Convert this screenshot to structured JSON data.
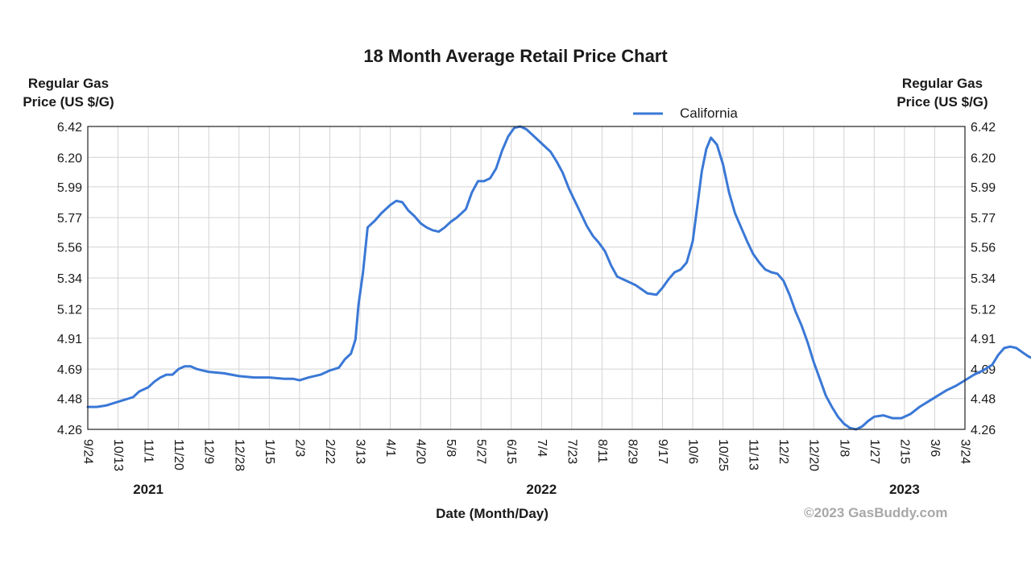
{
  "chart_data": {
    "type": "line",
    "title": "18 Month Average Retail Price Chart",
    "ylabel_left": "Regular Gas\nPrice (US $/G)",
    "ylabel_right": "Regular Gas\nPrice (US $/G)",
    "xlabel": "Date (Month/Day)",
    "legend": {
      "position": "top-center",
      "entries": [
        "California"
      ]
    },
    "grid": true,
    "ylim": [
      4.26,
      6.42
    ],
    "y_ticks": [
      "4.26",
      "4.48",
      "4.69",
      "4.91",
      "5.12",
      "5.34",
      "5.56",
      "5.77",
      "5.99",
      "6.20",
      "6.42"
    ],
    "x_ticks": [
      "9/24",
      "10/13",
      "11/1",
      "11/20",
      "12/9",
      "12/28",
      "1/15",
      "2/3",
      "2/22",
      "3/13",
      "4/1",
      "4/20",
      "5/8",
      "5/27",
      "6/15",
      "7/4",
      "7/23",
      "8/11",
      "8/29",
      "9/17",
      "10/6",
      "10/25",
      "11/13",
      "12/2",
      "12/20",
      "1/8",
      "1/27",
      "2/15",
      "3/6",
      "3/24"
    ],
    "year_labels": [
      {
        "label": "2021",
        "tick_index": 2
      },
      {
        "label": "2022",
        "tick_index": 15
      },
      {
        "label": "2023",
        "tick_index": 27
      }
    ],
    "series": [
      {
        "name": "California",
        "color": "#3a78d6",
        "points": [
          [
            0,
            4.42
          ],
          [
            0.3,
            4.42
          ],
          [
            0.6,
            4.43
          ],
          [
            0.9,
            4.45
          ],
          [
            1.2,
            4.47
          ],
          [
            1.5,
            4.49
          ],
          [
            1.7,
            4.53
          ],
          [
            2.0,
            4.56
          ],
          [
            2.2,
            4.6
          ],
          [
            2.4,
            4.63
          ],
          [
            2.6,
            4.65
          ],
          [
            2.8,
            4.65
          ],
          [
            3.0,
            4.69
          ],
          [
            3.2,
            4.71
          ],
          [
            3.4,
            4.71
          ],
          [
            3.6,
            4.69
          ],
          [
            3.8,
            4.68
          ],
          [
            4.0,
            4.67
          ],
          [
            4.5,
            4.66
          ],
          [
            5.0,
            4.64
          ],
          [
            5.5,
            4.63
          ],
          [
            6.0,
            4.63
          ],
          [
            6.5,
            4.62
          ],
          [
            6.8,
            4.62
          ],
          [
            7.0,
            4.61
          ],
          [
            7.3,
            4.63
          ],
          [
            7.7,
            4.65
          ],
          [
            8.0,
            4.68
          ],
          [
            8.3,
            4.7
          ],
          [
            8.5,
            4.76
          ],
          [
            8.7,
            4.8
          ],
          [
            8.85,
            4.9
          ],
          [
            8.95,
            5.15
          ],
          [
            9.1,
            5.38
          ],
          [
            9.25,
            5.7
          ],
          [
            9.5,
            5.75
          ],
          [
            9.7,
            5.8
          ],
          [
            10.0,
            5.86
          ],
          [
            10.2,
            5.89
          ],
          [
            10.4,
            5.88
          ],
          [
            10.6,
            5.82
          ],
          [
            10.8,
            5.78
          ],
          [
            11.0,
            5.73
          ],
          [
            11.2,
            5.7
          ],
          [
            11.4,
            5.68
          ],
          [
            11.6,
            5.67
          ],
          [
            11.8,
            5.7
          ],
          [
            12.0,
            5.74
          ],
          [
            12.2,
            5.77
          ],
          [
            12.5,
            5.83
          ],
          [
            12.7,
            5.95
          ],
          [
            12.9,
            6.03
          ],
          [
            13.1,
            6.03
          ],
          [
            13.3,
            6.05
          ],
          [
            13.5,
            6.12
          ],
          [
            13.7,
            6.25
          ],
          [
            13.9,
            6.35
          ],
          [
            14.1,
            6.41
          ],
          [
            14.3,
            6.42
          ],
          [
            14.5,
            6.4
          ],
          [
            14.7,
            6.36
          ],
          [
            14.9,
            6.32
          ],
          [
            15.1,
            6.28
          ],
          [
            15.3,
            6.24
          ],
          [
            15.5,
            6.17
          ],
          [
            15.7,
            6.09
          ],
          [
            15.9,
            5.98
          ],
          [
            16.1,
            5.89
          ],
          [
            16.3,
            5.8
          ],
          [
            16.5,
            5.71
          ],
          [
            16.7,
            5.64
          ],
          [
            16.9,
            5.59
          ],
          [
            17.1,
            5.53
          ],
          [
            17.3,
            5.43
          ],
          [
            17.5,
            5.35
          ],
          [
            17.8,
            5.32
          ],
          [
            18.1,
            5.29
          ],
          [
            18.3,
            5.26
          ],
          [
            18.5,
            5.23
          ],
          [
            18.8,
            5.22
          ],
          [
            19.0,
            5.27
          ],
          [
            19.2,
            5.33
          ],
          [
            19.4,
            5.38
          ],
          [
            19.6,
            5.4
          ],
          [
            19.8,
            5.45
          ],
          [
            20.0,
            5.6
          ],
          [
            20.15,
            5.85
          ],
          [
            20.3,
            6.1
          ],
          [
            20.45,
            6.26
          ],
          [
            20.6,
            6.34
          ],
          [
            20.8,
            6.29
          ],
          [
            21.0,
            6.15
          ],
          [
            21.2,
            5.95
          ],
          [
            21.4,
            5.8
          ],
          [
            21.6,
            5.7
          ],
          [
            21.8,
            5.6
          ],
          [
            22.0,
            5.51
          ],
          [
            22.2,
            5.45
          ],
          [
            22.4,
            5.4
          ],
          [
            22.6,
            5.38
          ],
          [
            22.8,
            5.37
          ],
          [
            23.0,
            5.32
          ],
          [
            23.2,
            5.22
          ],
          [
            23.4,
            5.1
          ],
          [
            23.6,
            5.0
          ],
          [
            23.8,
            4.88
          ],
          [
            24.0,
            4.74
          ],
          [
            24.2,
            4.62
          ],
          [
            24.4,
            4.5
          ],
          [
            24.6,
            4.42
          ],
          [
            24.8,
            4.35
          ],
          [
            25.0,
            4.3
          ],
          [
            25.2,
            4.27
          ],
          [
            25.4,
            4.26
          ],
          [
            25.6,
            4.28
          ],
          [
            25.8,
            4.32
          ],
          [
            26.0,
            4.35
          ],
          [
            26.3,
            4.36
          ],
          [
            26.6,
            4.34
          ],
          [
            26.9,
            4.34
          ],
          [
            27.2,
            4.37
          ],
          [
            27.5,
            4.42
          ],
          [
            27.8,
            4.46
          ],
          [
            28.1,
            4.5
          ],
          [
            28.4,
            4.54
          ],
          [
            28.7,
            4.57
          ],
          [
            29.0,
            4.61
          ],
          [
            29.3,
            4.65
          ],
          [
            29.6,
            4.68
          ],
          [
            29.9,
            4.72
          ],
          [
            30.1,
            4.79
          ],
          [
            30.3,
            4.84
          ],
          [
            30.5,
            4.85
          ],
          [
            30.7,
            4.84
          ],
          [
            30.9,
            4.81
          ],
          [
            31.1,
            4.78
          ],
          [
            31.3,
            4.76
          ],
          [
            31.5,
            4.75
          ]
        ]
      }
    ]
  },
  "copyright": "©2023 GasBuddy.com"
}
